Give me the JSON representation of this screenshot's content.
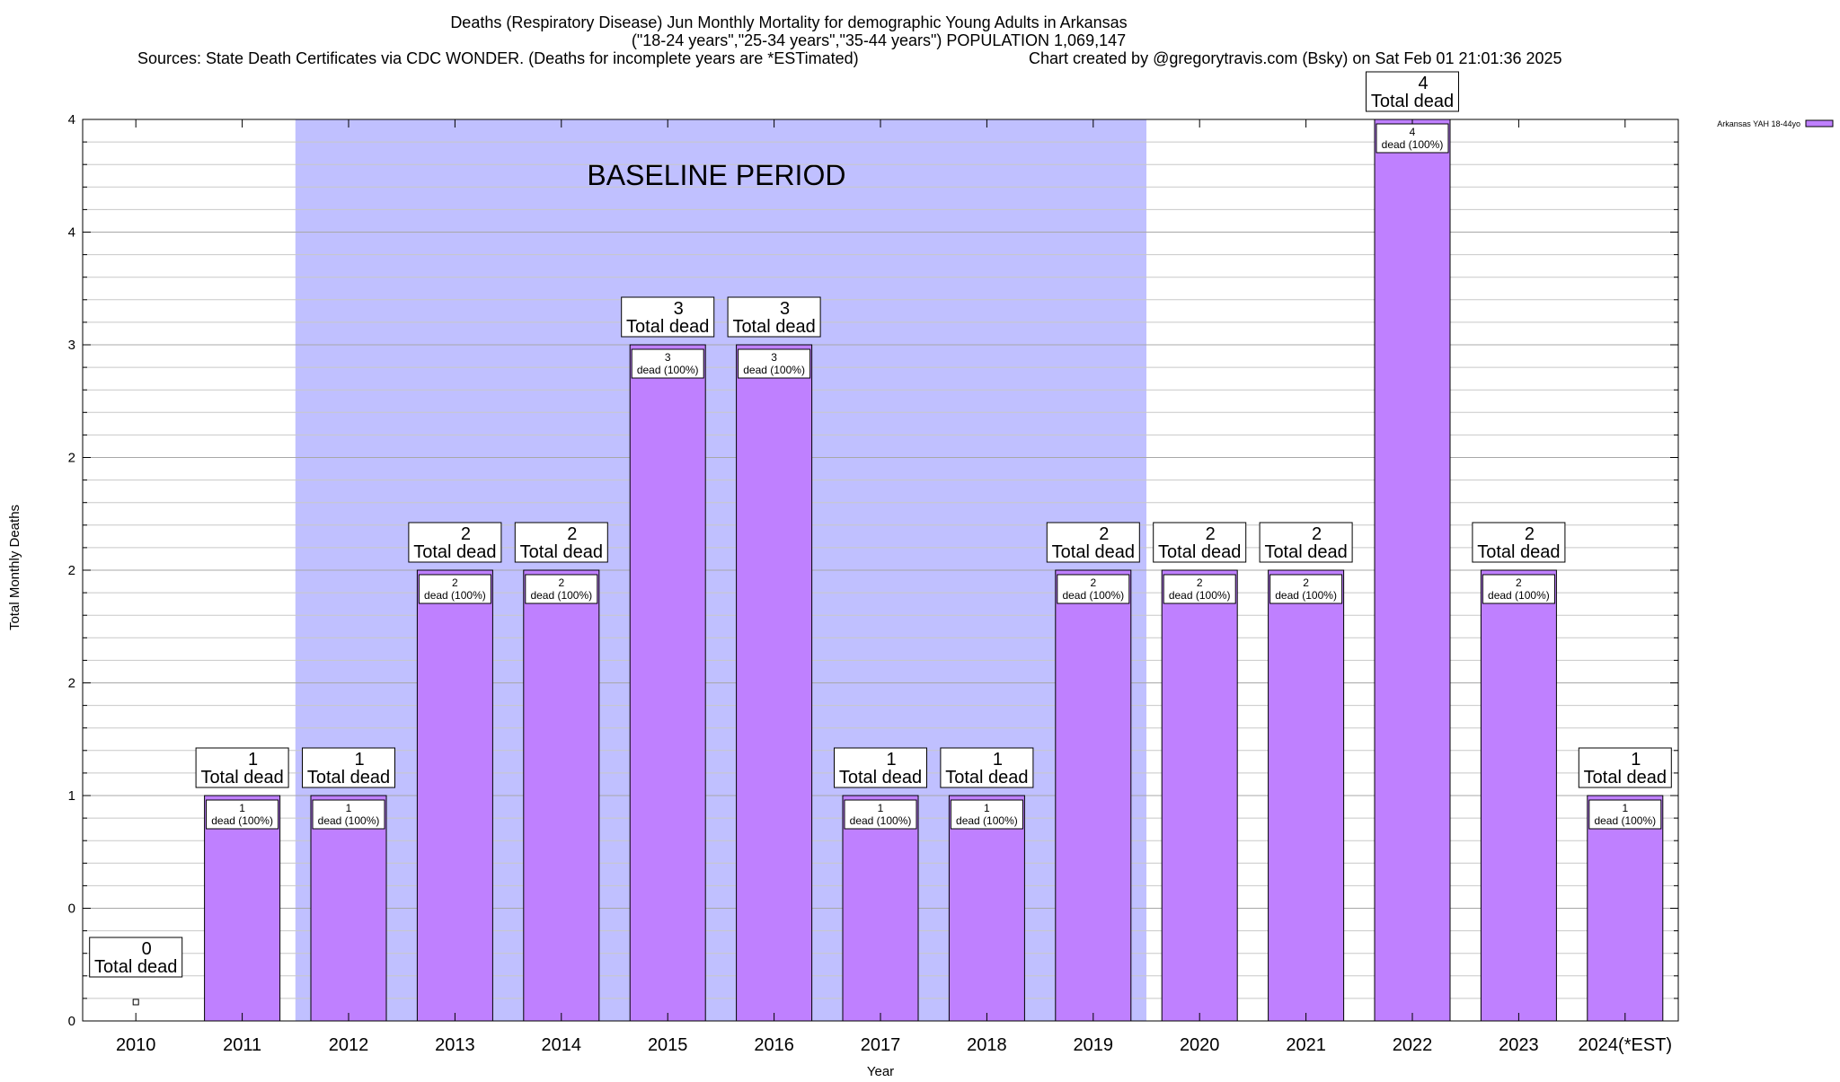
{
  "chart_data": {
    "type": "bar",
    "title_lines": [
      "Deaths (Respiratory Disease) Jun Monthly Mortality for demographic Young Adults in Arkansas",
      "(\"18-24 years\",\"25-34 years\",\"35-44 years\") POPULATION 1,069,147"
    ],
    "sources_text": "Sources: State Death Certificates via CDC WONDER. (Deaths for incomplete years are *ESTimated)",
    "credit_text": "Chart created by @gregorytravis.com (Bsky) on Sat Feb 01 21:01:36 2025",
    "xlabel": "Year",
    "ylabel": "Total Monthly Deaths",
    "categories": [
      "2010",
      "2011",
      "2012",
      "2013",
      "2014",
      "2015",
      "2016",
      "2017",
      "2018",
      "2019",
      "2020",
      "2021",
      "2022",
      "2023",
      "2024(*EST)"
    ],
    "series": [
      {
        "name": "Arkansas YAH 18-44yo",
        "values": [
          0,
          1,
          1,
          2,
          2,
          3,
          3,
          1,
          1,
          2,
          2,
          2,
          4,
          2,
          1
        ],
        "color": "#bf80ff"
      }
    ],
    "total_label_suffix": "Total dead",
    "inner_label_suffix": "dead (100%)",
    "ylim": [
      0,
      4
    ],
    "y_ticks": [
      {
        "value": 0,
        "label": "0"
      },
      {
        "value": 0.5,
        "label": "0"
      },
      {
        "value": 1,
        "label": "1"
      },
      {
        "value": 1.5,
        "label": "2"
      },
      {
        "value": 2,
        "label": "2"
      },
      {
        "value": 2.5,
        "label": "2"
      },
      {
        "value": 3,
        "label": "3"
      },
      {
        "value": 3.5,
        "label": "4"
      },
      {
        "value": 4,
        "label": "4"
      }
    ],
    "baseline": {
      "label": "BASELINE PERIOD",
      "start_year": "2012",
      "end_year": "2019",
      "color": "#c0c0ff"
    },
    "grid": true,
    "legend_position": "top-right"
  }
}
